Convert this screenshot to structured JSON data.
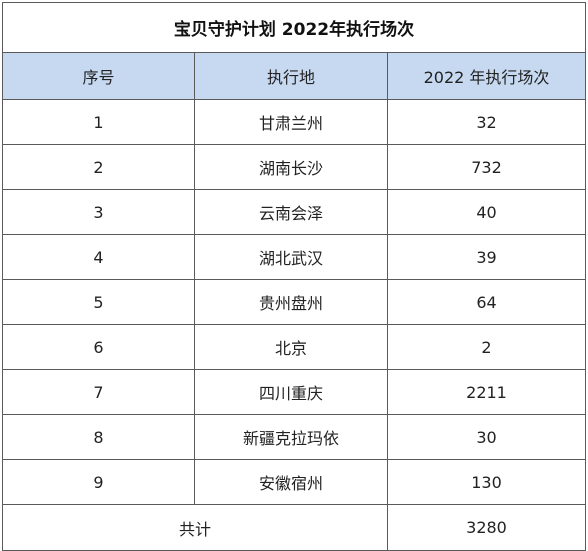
{
  "table": {
    "title": "宝贝守护计划 2022年执行场次",
    "headers": [
      "序号",
      "执行地",
      "2022 年执行场次"
    ],
    "rows": [
      {
        "index": "1",
        "location": "甘肃兰州",
        "count": "32"
      },
      {
        "index": "2",
        "location": "湖南长沙",
        "count": "732"
      },
      {
        "index": "3",
        "location": "云南会泽",
        "count": "40"
      },
      {
        "index": "4",
        "location": "湖北武汉",
        "count": "39"
      },
      {
        "index": "5",
        "location": "贵州盘州",
        "count": "64"
      },
      {
        "index": "6",
        "location": "北京",
        "count": "2"
      },
      {
        "index": "7",
        "location": "四川重庆",
        "count": "2211"
      },
      {
        "index": "8",
        "location": "新疆克拉玛依",
        "count": "30"
      },
      {
        "index": "9",
        "location": "安徽宿州",
        "count": "130"
      }
    ],
    "total": {
      "label": "共计",
      "count": "3280"
    }
  },
  "colors": {
    "header_background": "#c6d9f1",
    "border": "#5a5a5a"
  }
}
